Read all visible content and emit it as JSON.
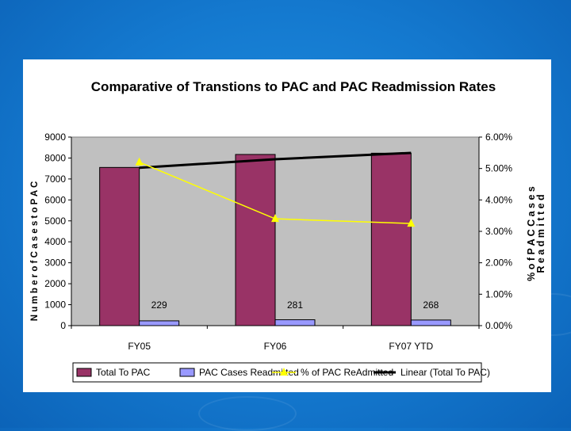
{
  "colors": {
    "total_bar": "#993366",
    "readmit_bar": "#9999ff",
    "pct_line": "#ffff00",
    "linear_line": "#000000",
    "plot_bg": "#c0c0c0"
  },
  "chart_data": {
    "type": "bar",
    "title": "Comparative of Transtions to PAC and PAC Readmission Rates",
    "ylabel": "N u m b e r  o f  C a s e s  t o  P A C",
    "y2label_line1": "%  o f  P A C  C a s e s",
    "y2label_line2": "R e a d m i t t e d",
    "categories": [
      "FY05",
      "FY06",
      "FY07 YTD"
    ],
    "ylim": [
      0,
      9000
    ],
    "y2lim": [
      0,
      6
    ],
    "yticks": [
      "0",
      "1000",
      "2000",
      "3000",
      "4000",
      "5000",
      "6000",
      "7000",
      "8000",
      "9000"
    ],
    "y2ticks": [
      "0.00%",
      "1.00%",
      "2.00%",
      "3.00%",
      "4.00%",
      "5.00%",
      "6.00%"
    ],
    "series": [
      {
        "name": "Total To PAC",
        "type": "bar",
        "values": [
          7550,
          8170,
          8230
        ]
      },
      {
        "name": "PAC Cases Readmitted",
        "type": "bar",
        "values": [
          229,
          281,
          268
        ],
        "labels": [
          "229",
          "281",
          "268"
        ]
      },
      {
        "name": "% of PAC ReAdmitted",
        "type": "line",
        "axis": "right",
        "values": [
          5.2,
          3.4,
          3.25
        ]
      },
      {
        "name": "Linear (Total To PAC)",
        "type": "trendline",
        "values": [
          7535,
          7940,
          8245
        ]
      }
    ],
    "legend_position": "bottom",
    "grid": false
  }
}
